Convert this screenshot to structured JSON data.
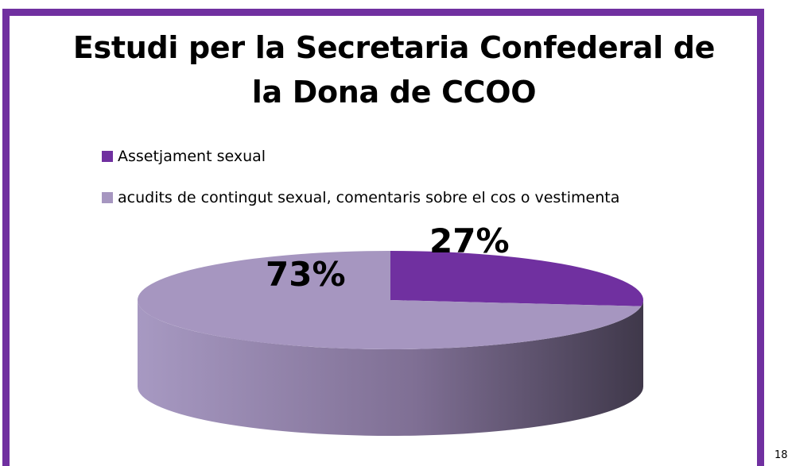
{
  "slide": {
    "page_number": "18"
  },
  "colors": {
    "frame": "#7030a0",
    "series_1": "#7030a0",
    "series_2": "#a696c0"
  },
  "chart_data": {
    "type": "pie",
    "title": "Estudi per la Secretaria Confederal de la Dona de CCOO",
    "title_lines": [
      "Estudi per la Secretaria Confederal de",
      "la Dona de CCOO"
    ],
    "categories": [
      "Assetjament sexual",
      "acudits de contingut sexual, comentaris sobre el cos o vestimenta"
    ],
    "values": [
      27,
      73
    ],
    "data_labels": [
      "27%",
      "73%"
    ],
    "legend_position": "top-left",
    "style": "3d"
  }
}
